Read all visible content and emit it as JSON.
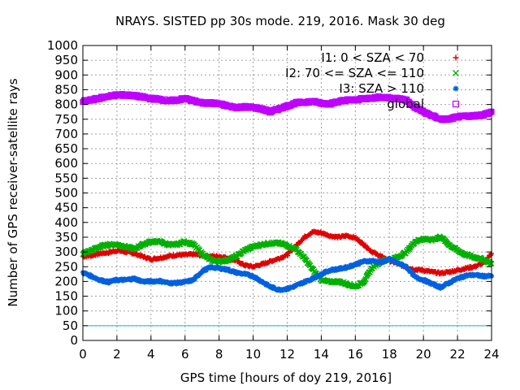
{
  "chart_data": {
    "type": "scatter",
    "title": "NRAYS. SISTED pp 30s mode. 219, 2016. Mask 30 deg",
    "xlabel": "GPS time [hours of doy 219, 2016]",
    "ylabel": "Number of GPS receiver-satellite rays",
    "xlim": [
      0,
      24
    ],
    "ylim": [
      0,
      1000
    ],
    "xticks": [
      0,
      2,
      4,
      6,
      8,
      10,
      12,
      14,
      16,
      18,
      20,
      22,
      24
    ],
    "yticks": [
      0,
      50,
      100,
      150,
      200,
      250,
      300,
      350,
      400,
      450,
      500,
      550,
      600,
      650,
      700,
      750,
      800,
      850,
      900,
      950,
      1000
    ],
    "grid": true,
    "legend_position": "top-right",
    "mask_line": {
      "value": 50,
      "color": "#00c0c0"
    },
    "series": [
      {
        "name": "I1: 0 < SZA < 70",
        "marker": "+",
        "color": "#e00000",
        "x": [
          0,
          0.5,
          1,
          1.5,
          2,
          2.5,
          3,
          3.5,
          4,
          4.5,
          5,
          5.5,
          6,
          6.5,
          7,
          7.5,
          8,
          8.5,
          9,
          9.5,
          10,
          10.5,
          11,
          11.5,
          12,
          12.5,
          13,
          13.5,
          14,
          14.5,
          15,
          15.5,
          16,
          16.5,
          17,
          17.5,
          18,
          18.5,
          19,
          19.5,
          20,
          20.5,
          21,
          21.5,
          22,
          22.5,
          23,
          23.5,
          24
        ],
        "values": [
          285,
          288,
          295,
          298,
          305,
          300,
          295,
          285,
          275,
          280,
          285,
          290,
          290,
          292,
          288,
          285,
          285,
          280,
          270,
          255,
          250,
          258,
          268,
          278,
          290,
          320,
          350,
          368,
          365,
          355,
          350,
          355,
          348,
          325,
          300,
          285,
          270,
          260,
          248,
          240,
          238,
          232,
          228,
          232,
          238,
          245,
          250,
          262,
          295
        ]
      },
      {
        "name": "I2: 70 <= SZA <= 110",
        "marker": "x",
        "color": "#00b000",
        "x": [
          0,
          0.5,
          1,
          1.5,
          2,
          2.5,
          3,
          3.5,
          4,
          4.5,
          5,
          5.5,
          6,
          6.5,
          7,
          7.5,
          8,
          8.5,
          9,
          9.5,
          10,
          10.5,
          11,
          11.5,
          12,
          12.5,
          13,
          13.5,
          14,
          14.5,
          15,
          15.5,
          16,
          16.5,
          17,
          17.5,
          18,
          18.5,
          19,
          19.5,
          20,
          20.5,
          21,
          21.5,
          22,
          22.5,
          23,
          23.5,
          24
        ],
        "values": [
          295,
          305,
          318,
          325,
          325,
          318,
          310,
          325,
          335,
          335,
          325,
          325,
          335,
          325,
          295,
          272,
          268,
          272,
          285,
          305,
          318,
          325,
          330,
          330,
          322,
          310,
          280,
          240,
          205,
          198,
          200,
          192,
          182,
          200,
          248,
          268,
          275,
          282,
          300,
          335,
          345,
          340,
          352,
          325,
          305,
          290,
          282,
          275,
          260
        ]
      },
      {
        "name": "I3: SZA > 110",
        "marker": "*",
        "color": "#0060e0",
        "x": [
          0,
          0.5,
          1,
          1.5,
          2,
          2.5,
          3,
          3.5,
          4,
          4.5,
          5,
          5.5,
          6,
          6.5,
          7,
          7.5,
          8,
          8.5,
          9,
          9.5,
          10,
          10.5,
          11,
          11.5,
          12,
          12.5,
          13,
          13.5,
          14,
          14.5,
          15,
          15.5,
          16,
          16.5,
          17,
          17.5,
          18,
          18.5,
          19,
          19.5,
          20,
          20.5,
          21,
          21.5,
          22,
          22.5,
          23,
          23.5,
          24
        ],
        "values": [
          230,
          218,
          205,
          198,
          205,
          205,
          210,
          200,
          200,
          202,
          195,
          195,
          198,
          205,
          235,
          248,
          245,
          240,
          230,
          225,
          218,
          200,
          182,
          172,
          175,
          185,
          198,
          210,
          225,
          238,
          242,
          248,
          258,
          268,
          270,
          265,
          275,
          262,
          250,
          215,
          205,
          192,
          180,
          195,
          210,
          220,
          222,
          218,
          218
        ]
      },
      {
        "name": "global",
        "marker": "square",
        "color": "#c000ff",
        "x": [
          0,
          0.5,
          1,
          1.5,
          2,
          2.5,
          3,
          3.5,
          4,
          4.5,
          5,
          5.5,
          6,
          6.5,
          7,
          7.5,
          8,
          8.5,
          9,
          9.5,
          10,
          10.5,
          11,
          11.5,
          12,
          12.5,
          13,
          13.5,
          14,
          14.5,
          15,
          15.5,
          16,
          16.5,
          17,
          17.5,
          18,
          18.5,
          19,
          19.5,
          20,
          20.5,
          21,
          21.5,
          22,
          22.5,
          23,
          23.5,
          24
        ],
        "values": [
          810,
          815,
          822,
          828,
          832,
          832,
          830,
          825,
          820,
          818,
          812,
          815,
          820,
          812,
          805,
          805,
          802,
          795,
          790,
          792,
          790,
          785,
          775,
          785,
          795,
          805,
          808,
          810,
          805,
          802,
          810,
          815,
          815,
          820,
          822,
          825,
          822,
          820,
          815,
          790,
          775,
          762,
          750,
          750,
          758,
          760,
          762,
          765,
          775
        ]
      }
    ]
  }
}
